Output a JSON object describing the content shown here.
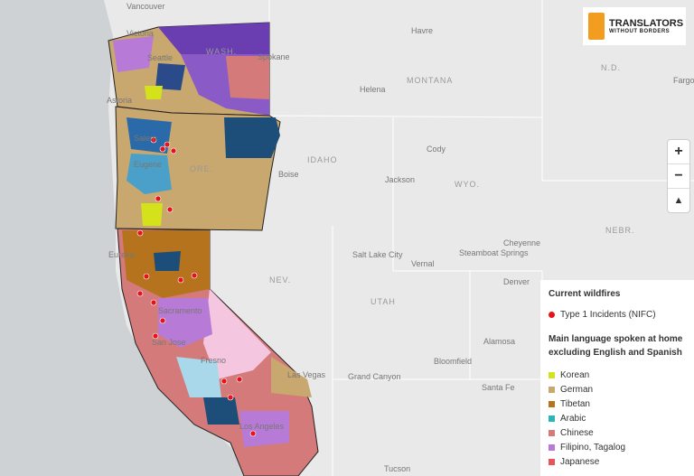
{
  "logo": {
    "line1": "TRANSLATORS",
    "line2": "WITHOUT BORDERS"
  },
  "controls": [
    "+",
    "−",
    "▲"
  ],
  "legend": {
    "title": "Current wildfires",
    "fire_item": "Type 1 Incidents (NIFC)",
    "fire_color": "#e8121b",
    "subtitle": "Main language spoken at home excluding English and Spanish",
    "items": [
      {
        "label": "Korean",
        "color": "#d4e21c"
      },
      {
        "label": "German",
        "color": "#c8a86e"
      },
      {
        "label": "Tibetan",
        "color": "#b5731e"
      },
      {
        "label": "Arabic",
        "color": "#2ab6b6"
      },
      {
        "label": "Chinese",
        "color": "#d47a7a"
      },
      {
        "label": "Filipino, Tagalog",
        "color": "#b77ad6"
      },
      {
        "label": "Japanese",
        "color": "#e8545a"
      }
    ]
  },
  "places": [
    "Vancouver",
    "Victoria",
    "Seattle",
    "WASH.",
    "Spokane",
    "Havre",
    "Helena",
    "MONTANA",
    "Astoria",
    "Salem",
    "Eugene",
    "ORE.",
    "Boise",
    "IDAHO",
    "Cody",
    "Jackson",
    "WYO.",
    "Eureka",
    "NEV.",
    "Sacramento",
    "San Jose",
    "Fresno",
    "Las Vegas",
    "Grand Canyon",
    "Salt Lake City",
    "Vernal",
    "UTAH",
    "Steamboat Springs",
    "Cheyenne",
    "Denver",
    "Alamosa",
    "Bloomfield",
    "Santa Fe",
    "Los Angeles",
    "Tucson",
    "N.D.",
    "Fargo",
    "NEBR."
  ]
}
